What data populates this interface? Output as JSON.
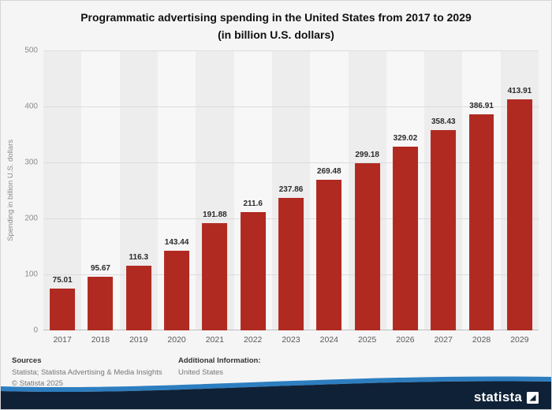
{
  "title": {
    "line1": "Programmatic advertising spending in the United States from 2017 to 2029",
    "line2": "(in billion U.S. dollars)"
  },
  "chart_data": {
    "type": "bar",
    "title": "Programmatic advertising spending in the United States from 2017 to 2029 (in billion U.S. dollars)",
    "categories": [
      "2017",
      "2018",
      "2019",
      "2020",
      "2021",
      "2022",
      "2023",
      "2024",
      "2025",
      "2026",
      "2027",
      "2028",
      "2029"
    ],
    "values": [
      75.01,
      95.67,
      116.3,
      143.44,
      191.88,
      211.6,
      237.86,
      269.48,
      299.18,
      329.02,
      358.43,
      386.91,
      413.91
    ],
    "value_labels": [
      "75.01",
      "95.67",
      "116.3",
      "143.44",
      "191.88",
      "211.6",
      "237.86",
      "269.48",
      "299.18",
      "329.02",
      "358.43",
      "386.91",
      "413.91"
    ],
    "xlabel": "",
    "ylabel": "Spending in billion U.S. dollars",
    "ylim": [
      0,
      500
    ],
    "yticks": [
      0,
      100,
      200,
      300,
      400,
      500
    ],
    "grid": true,
    "legend": "none",
    "bar_color": "#b02a21",
    "band_colors": [
      "#eeedee",
      "#f7f7f7"
    ]
  },
  "footer": {
    "sources_heading": "Sources",
    "sources_text": "Statista; Statista Advertising & Media Insights",
    "copyright": "© Statista 2025",
    "additional_heading": "Additional Information:",
    "additional_text": "United States"
  },
  "brand": {
    "logo_text": "statista",
    "logo_mark_icon": "statista-logo-square",
    "navy": "#0f2137",
    "accent_blue": "#2d7ec0"
  }
}
